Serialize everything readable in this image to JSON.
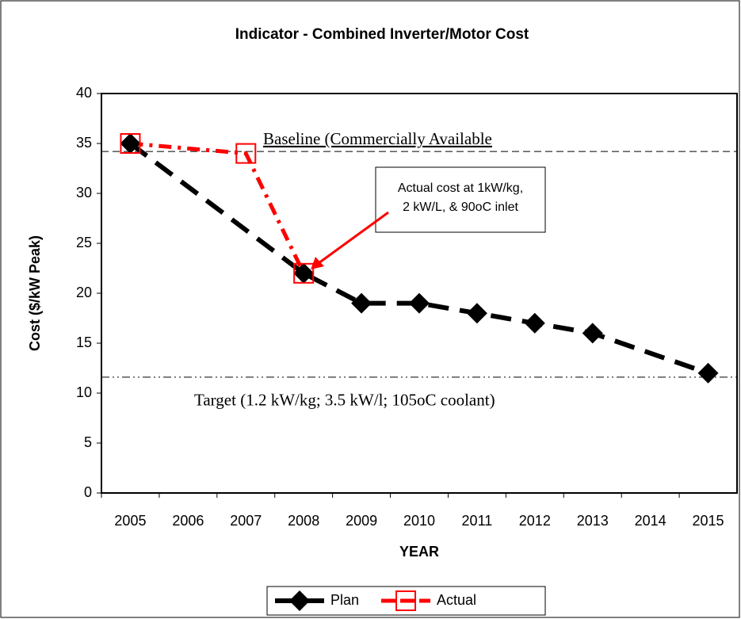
{
  "chart_data": {
    "type": "line",
    "title": "Indicator - Combined Inverter/Motor Cost",
    "x_label": "YEAR",
    "y_label": "Cost ($/kW Peak)",
    "categories": [
      "2005",
      "2006",
      "2007",
      "2008",
      "2009",
      "2010",
      "2011",
      "2012",
      "2013",
      "2014",
      "2015"
    ],
    "series": [
      {
        "name": "Plan",
        "color": "#000000",
        "marker": "diamond",
        "values": [
          35,
          null,
          null,
          22,
          19,
          19,
          18,
          17,
          16,
          null,
          12
        ]
      },
      {
        "name": "Actual",
        "color": "#ff0000",
        "marker": "square",
        "values": [
          35,
          null,
          34,
          22,
          null,
          null,
          null,
          null,
          null,
          null,
          null
        ]
      }
    ],
    "connect_gaps": true,
    "ylim": [
      0,
      40
    ],
    "yticks": [
      0,
      5,
      10,
      15,
      20,
      25,
      30,
      35,
      40
    ],
    "reference_lines": [
      {
        "label": "Baseline (Commercially Available",
        "value": 34.2,
        "dash": "dashed"
      },
      {
        "label": "Target (1.2 kW/kg; 3.5 kW/l; 105oC coolant)",
        "value": 11.6,
        "dash": "dash-dot-dot"
      }
    ],
    "annotation": [
      "Actual cost at 1kW/kg,",
      "2 kW/L, & 90oC inlet"
    ],
    "legend": "bottom"
  }
}
